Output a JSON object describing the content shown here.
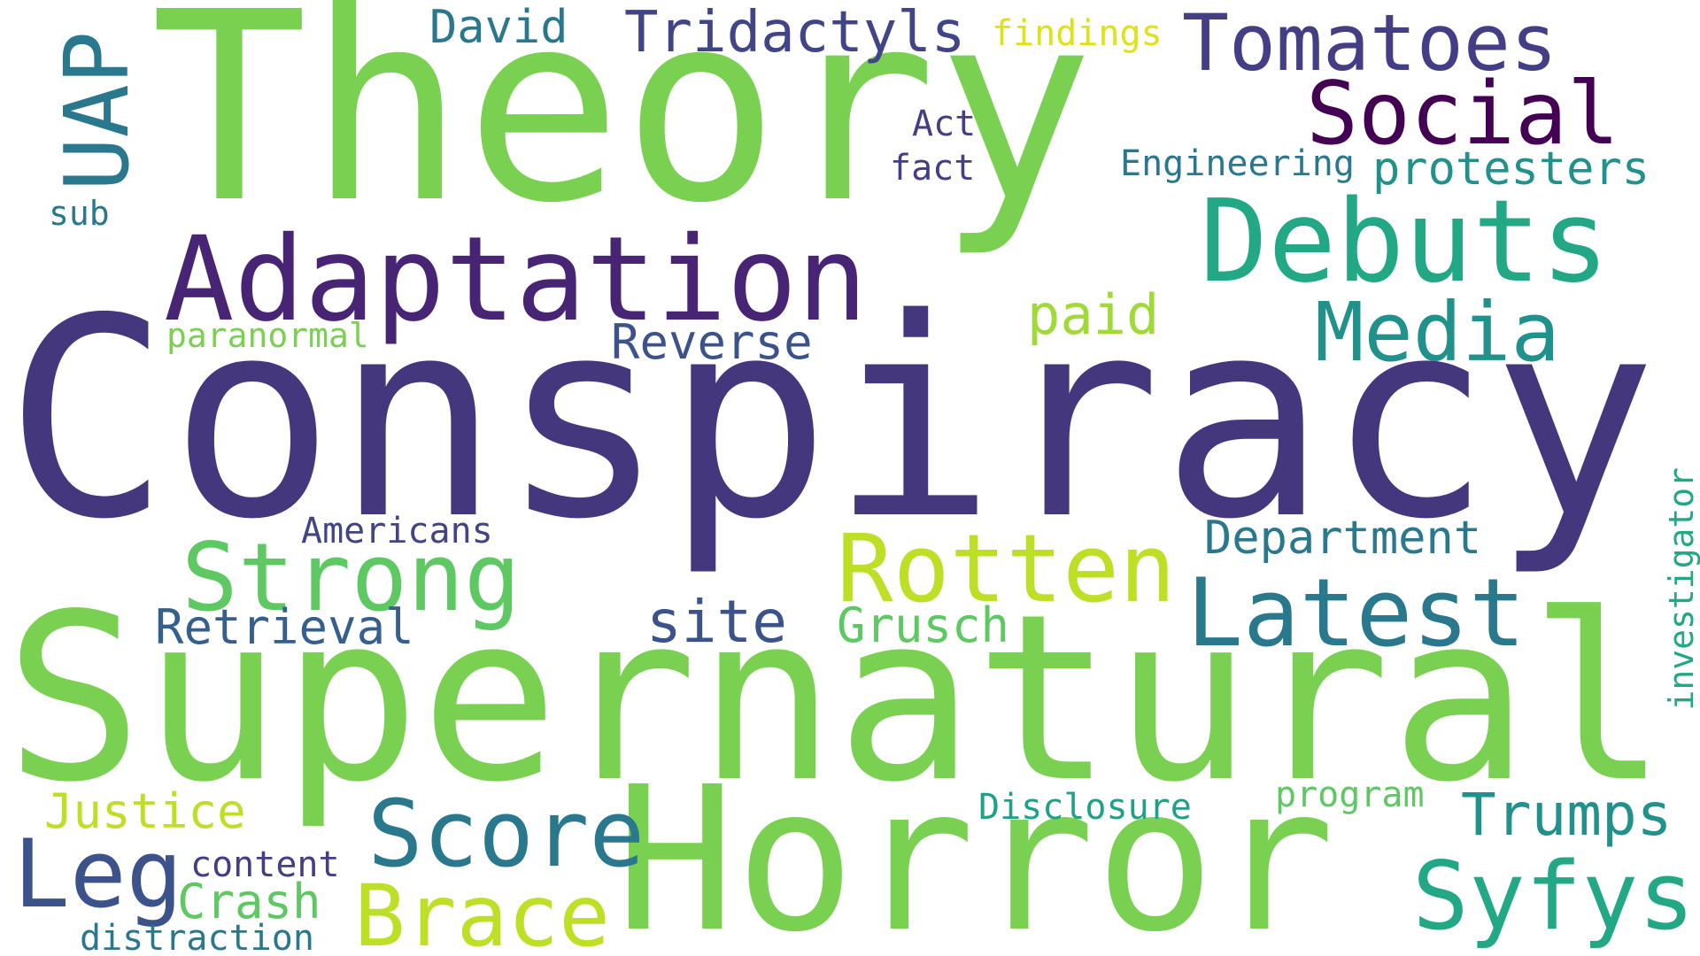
{
  "words": {
    "conspiracy": "Conspiracy",
    "supernatural": "Supernatural",
    "theory": "Theory",
    "horror": "Horror",
    "adaptation": "Adaptation",
    "debuts": "Debuts",
    "tomatoes": "Tomatoes",
    "social": "Social",
    "media": "Media",
    "uap": "UAP",
    "tridactyls": "Tridactyls",
    "david": "David",
    "findings": "findings",
    "act": "Act",
    "fact": "fact",
    "engineering": "Engineering",
    "protesters": "protesters",
    "sub": "sub",
    "paranormal": "paranormal",
    "reverse": "Reverse",
    "paid": "paid",
    "strong": "Strong",
    "americans": "Americans",
    "rotten": "Rotten",
    "department": "Department",
    "latest": "Latest",
    "retrieval": "Retrieval",
    "site": "site",
    "grusch": "Grusch",
    "investigator": "investigator",
    "justice": "Justice",
    "leg": "Leg",
    "score": "Score",
    "content": "content",
    "crash": "Crash",
    "brace": "Brace",
    "distraction": "distraction",
    "disclosure": "Disclosure",
    "program": "program",
    "trumps": "Trumps",
    "syfys": "Syfys"
  },
  "colors": {
    "background": "#ffffff",
    "palette": [
      "#440154",
      "#482475",
      "#414487",
      "#3b528b",
      "#2a788e",
      "#21918c",
      "#22a884",
      "#5ec962",
      "#7ad151",
      "#bddf26",
      "#dde318"
    ]
  }
}
